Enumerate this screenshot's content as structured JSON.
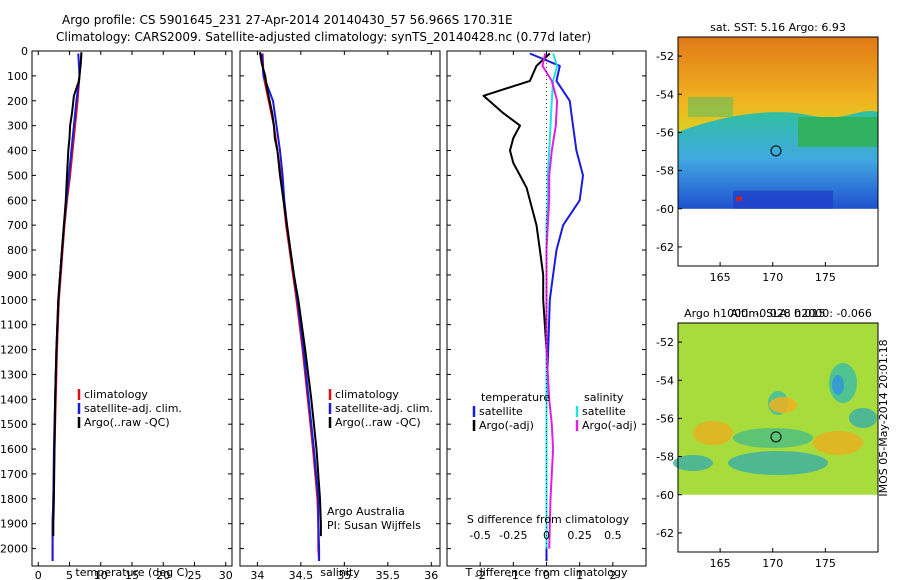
{
  "header": {
    "line1": "Argo profile: CS 5901645_231 27-Apr-2014 20140430_57 56.966S 170.31E",
    "line2": "Climatology: CARS2009. Satellite-adjusted climatology: synTS_20140428.nc (0.77d later)"
  },
  "colors": {
    "climatology": "#e01010",
    "satellite": "#1a1ae0",
    "argo": "#000000",
    "sat_salinity": "#20e0e8",
    "argo_salinity": "#e020e0"
  },
  "chart_data": [
    {
      "type": "line",
      "panel": "temperature",
      "xlabel": "temperature (deg C)",
      "xlim": [
        -1,
        31
      ],
      "xticks": [
        "0",
        "5",
        "10",
        "15",
        "20",
        "25",
        "30"
      ],
      "ylim": [
        0,
        2070
      ],
      "yticks": [
        "0",
        "100",
        "200",
        "300",
        "400",
        "500",
        "600",
        "700",
        "800",
        "900",
        "1000",
        "1100",
        "1200",
        "1300",
        "1400",
        "1500",
        "1600",
        "1700",
        "1800",
        "1900",
        "2000"
      ],
      "legend": [
        "climatology",
        "satellite-adj. clim.",
        "Argo(..raw -QC)"
      ],
      "series": [
        {
          "name": "climatology",
          "depth": [
            10,
            100,
            200,
            300,
            400,
            500,
            600,
            700,
            800,
            900,
            1000,
            1200,
            1400,
            1600,
            1800,
            1900,
            2000,
            2050
          ],
          "values": [
            6.9,
            6.6,
            6.3,
            5.9,
            5.5,
            5.1,
            4.6,
            4.2,
            3.9,
            3.6,
            3.3,
            3.0,
            2.8,
            2.6,
            2.4,
            2.3,
            2.3,
            2.3
          ]
        },
        {
          "name": "satellite-adj. clim.",
          "depth": [
            10,
            100,
            200,
            300,
            400,
            500,
            600,
            700,
            800,
            900,
            1000,
            1200,
            1400,
            1600,
            1800,
            1900,
            2000,
            2050
          ],
          "values": [
            6.4,
            6.6,
            6.1,
            5.7,
            5.3,
            4.9,
            4.5,
            4.1,
            3.8,
            3.5,
            3.2,
            2.9,
            2.7,
            2.5,
            2.4,
            2.3,
            2.3,
            2.3
          ]
        },
        {
          "name": "Argo(..raw -QC)",
          "depth": [
            5,
            50,
            120,
            180,
            250,
            300,
            350,
            400,
            500,
            600,
            700,
            800,
            900,
            1000,
            1200,
            1400,
            1600,
            1800,
            1900,
            1950
          ],
          "values": [
            6.9,
            6.8,
            6.5,
            5.7,
            5.4,
            5.1,
            5.0,
            4.8,
            4.6,
            4.4,
            4.1,
            3.8,
            3.5,
            3.2,
            2.9,
            2.7,
            2.6,
            2.5,
            2.4,
            2.4
          ]
        }
      ]
    },
    {
      "type": "line",
      "panel": "salinity",
      "xlabel": "salinity",
      "xlim": [
        33.8,
        36.1
      ],
      "xticks": [
        "34",
        "34.5",
        "35",
        "35.5",
        "36"
      ],
      "ylim": [
        0,
        2070
      ],
      "legend": [
        "climatology",
        "satellite-adj. clim.",
        "Argo(..raw -QC)"
      ],
      "series": [
        {
          "name": "climatology",
          "depth": [
            10,
            100,
            200,
            300,
            400,
            500,
            600,
            700,
            800,
            900,
            1000,
            1200,
            1400,
            1600,
            1800,
            1900,
            2000,
            2050
          ],
          "values": [
            34.06,
            34.07,
            34.13,
            34.19,
            34.23,
            34.27,
            34.3,
            34.33,
            34.37,
            34.41,
            34.45,
            34.52,
            34.58,
            34.64,
            34.69,
            34.7,
            34.7,
            34.71
          ]
        },
        {
          "name": "satellite-adj. clim.",
          "depth": [
            10,
            100,
            200,
            300,
            400,
            500,
            600,
            700,
            800,
            900,
            1000,
            1200,
            1400,
            1600,
            1800,
            1900,
            2000,
            2050
          ],
          "values": [
            34.05,
            34.07,
            34.18,
            34.22,
            34.26,
            34.29,
            34.31,
            34.34,
            34.38,
            34.42,
            34.46,
            34.53,
            34.59,
            34.65,
            34.7,
            34.7,
            34.71,
            34.71
          ]
        },
        {
          "name": "Argo(..raw -QC)",
          "depth": [
            5,
            50,
            100,
            150,
            200,
            250,
            300,
            350,
            400,
            500,
            600,
            700,
            800,
            900,
            1000,
            1200,
            1400,
            1600,
            1800,
            1900,
            1950
          ],
          "values": [
            34.03,
            34.05,
            34.09,
            34.11,
            34.14,
            34.17,
            34.19,
            34.2,
            34.23,
            34.26,
            34.3,
            34.34,
            34.38,
            34.42,
            34.47,
            34.55,
            34.62,
            34.68,
            34.72,
            34.73,
            34.73
          ]
        }
      ],
      "note": [
        "Argo Australia",
        "PI: Susan Wijffels"
      ]
    },
    {
      "type": "line",
      "panel": "difference",
      "xlabel": "T difference from climatology",
      "xlabel_top": "S difference from climatology",
      "xlim": [
        -3,
        3
      ],
      "xticks": [
        "-2",
        "-1",
        "0",
        "1",
        "2"
      ],
      "xticks_top": [
        "-0.5",
        "-0.25",
        "0",
        "0.25",
        "0.5"
      ],
      "ylim": [
        0,
        2070
      ],
      "legend_titles": [
        "temperature",
        "salinity"
      ],
      "legend": [
        "satellite",
        "Argo(-adj)",
        "satellite",
        "Argo(-adj)"
      ],
      "series": [
        {
          "name": "satellite",
          "depth": [
            10,
            60,
            120,
            200,
            300,
            400,
            500,
            600,
            700,
            800,
            900,
            1000,
            1200,
            1400,
            1600,
            1800,
            2000,
            2050
          ],
          "values": [
            -0.5,
            0.4,
            0.3,
            0.7,
            0.8,
            0.9,
            1.1,
            1.0,
            0.5,
            0.3,
            0.2,
            0.1,
            0.05,
            0.0,
            0.0,
            0.0,
            0.0,
            0.0
          ]
        },
        {
          "name": "Argo(-adj)",
          "depth": [
            10,
            60,
            120,
            180,
            250,
            300,
            350,
            400,
            450,
            500,
            550,
            600,
            700,
            800,
            900,
            1000,
            1200,
            1400,
            1600,
            1800,
            2000
          ],
          "values": [
            0.1,
            -0.3,
            -0.5,
            -1.9,
            -1.3,
            -0.8,
            -1.0,
            -1.1,
            -1.0,
            -0.8,
            -0.6,
            -0.5,
            -0.3,
            -0.2,
            -0.1,
            -0.1,
            0.0,
            0.0,
            0.0,
            0.0,
            0.0
          ]
        },
        {
          "name": "satellite",
          "depth": [
            10,
            60,
            120,
            200,
            300,
            400,
            500,
            600,
            700,
            800,
            1000,
            1200,
            1400,
            1600,
            1800,
            2000
          ],
          "values": [
            0.05,
            0.08,
            0.05,
            0.04,
            0.03,
            0.02,
            0.01,
            0.01,
            0.0,
            0.0,
            0.0,
            0.0,
            0.0,
            0.0,
            0.0,
            0.0
          ]
        },
        {
          "name": "Argo(-adj)",
          "depth": [
            10,
            60,
            120,
            200,
            300,
            400,
            500,
            600,
            700,
            800,
            1000,
            1200,
            1400,
            1500,
            1600,
            1800,
            2000
          ],
          "values": [
            -0.01,
            -0.03,
            0.04,
            0.08,
            0.07,
            0.04,
            0.02,
            0.02,
            0.01,
            0.0,
            0.0,
            0.0,
            0.02,
            0.04,
            0.05,
            0.03,
            0.02
          ]
        }
      ]
    },
    {
      "type": "heatmap",
      "panel": "sst-map",
      "title": "sat. SST: 5.16  Argo: 6.93",
      "xticks": [
        "165",
        "170",
        "175"
      ],
      "yticks": [
        "-52",
        "-54",
        "-56",
        "-58",
        "-60",
        "-62"
      ],
      "xlim": [
        161,
        180
      ],
      "ylim": [
        -63,
        -51
      ],
      "marker": {
        "lon": 170.31,
        "lat": -56.966
      }
    },
    {
      "type": "heatmap",
      "panel": "sla-map",
      "title": "Altim. SLA: 0.015",
      "subtitle": "Argo h1000: -0.028  h2000: -0.066",
      "xticks": [
        "165",
        "170",
        "175"
      ],
      "yticks": [
        "-52",
        "-54",
        "-56",
        "-58",
        "-60",
        "-62"
      ],
      "xlim": [
        161,
        180
      ],
      "ylim": [
        -63,
        -51
      ],
      "marker": {
        "lon": 170.31,
        "lat": -56.966
      }
    }
  ],
  "footer": {
    "timestamp": "IMOS 05-May-2014 20:01:18"
  }
}
